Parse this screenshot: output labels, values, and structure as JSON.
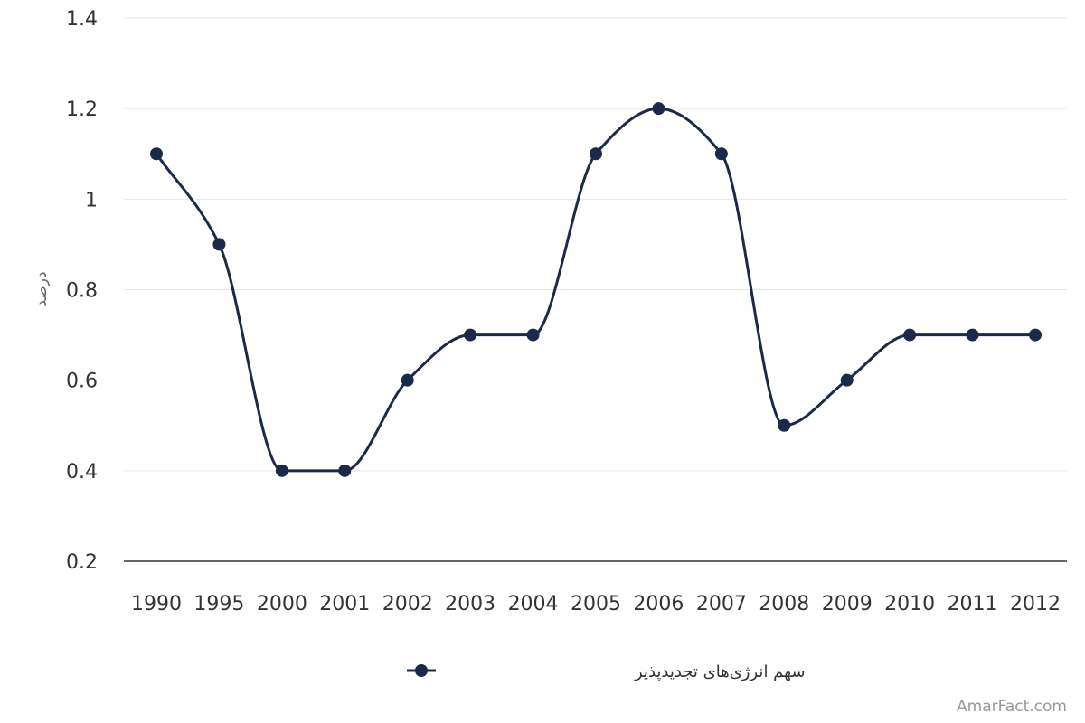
{
  "chart_data": {
    "type": "line",
    "categories": [
      "1990",
      "1995",
      "2000",
      "2001",
      "2002",
      "2003",
      "2004",
      "2005",
      "2006",
      "2007",
      "2008",
      "2009",
      "2010",
      "2011",
      "2012"
    ],
    "series": [
      {
        "name": "سهم انرژی‌های تجدیدپذیر",
        "values": [
          1.1,
          0.9,
          0.4,
          0.4,
          0.6,
          0.7,
          0.7,
          1.1,
          1.2,
          1.1,
          0.5,
          0.6,
          0.7,
          0.7,
          0.7
        ],
        "color": "#1b2a4a"
      }
    ],
    "ylabel": "درصد",
    "ylim": [
      0.2,
      1.4
    ],
    "yticks": [
      "0.2",
      "0.4",
      "0.6",
      "0.8",
      "1",
      "1.2",
      "1.4"
    ],
    "grid": true,
    "legend": "bottom-center",
    "smooth": true
  },
  "credit": "AmarFact.com",
  "colors": {
    "grid": "#e6e6e6",
    "axis": "#333333",
    "series": "#1b2a4a"
  }
}
